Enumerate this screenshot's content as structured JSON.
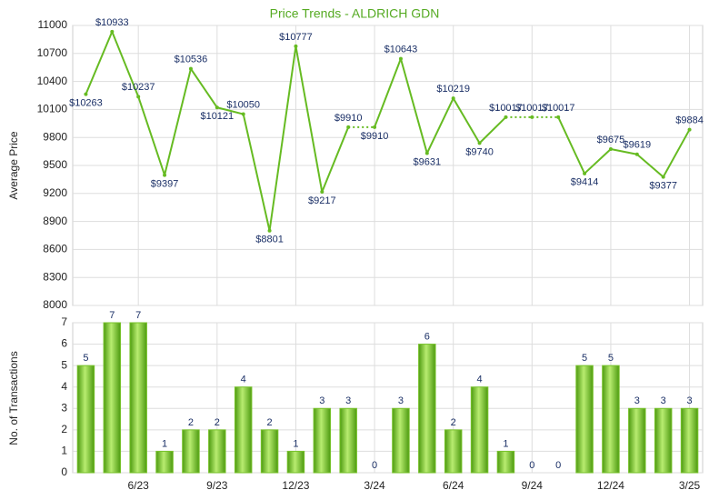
{
  "chart_data": [
    {
      "type": "line",
      "title": "Price Trends - ALDRICH GDN",
      "ylabel": "Average Price",
      "series": [
        {
          "name": "Average Price",
          "color": "#66bb22",
          "values": [
            10263,
            10933,
            10237,
            9397,
            10536,
            10121,
            10050,
            8801,
            10777,
            9217,
            9910,
            9910,
            10643,
            9631,
            10219,
            9740,
            10017,
            10017,
            10017,
            9414,
            9675,
            9619,
            9377,
            9884
          ],
          "value_labels": [
            "$10263",
            "$10933",
            "$10237",
            "$9397",
            "$10536",
            "$10121",
            "$10050",
            "$8801",
            "$10777",
            "$9217",
            "$9910",
            "$9910",
            "$10643",
            "$9631",
            "$10219",
            "$9740",
            "$10017",
            "$10017",
            "$10017",
            "$9414",
            "$9675",
            "$9619",
            "$9377",
            "$9884"
          ]
        }
      ],
      "ylim": [
        8000,
        11000
      ],
      "yticks": [
        8000,
        8300,
        8600,
        8900,
        9200,
        9500,
        9800,
        10100,
        10400,
        10700,
        11000
      ],
      "grid": true
    },
    {
      "type": "bar",
      "ylabel": "No. of Transactions",
      "categories": [
        null,
        null,
        "6/23",
        null,
        null,
        "9/23",
        null,
        null,
        "12/23",
        null,
        null,
        "3/24",
        null,
        null,
        "6/24",
        null,
        null,
        "9/24",
        null,
        null,
        "12/24",
        null,
        null,
        "3/25"
      ],
      "values": [
        5,
        7,
        7,
        1,
        2,
        2,
        4,
        2,
        1,
        3,
        3,
        0,
        3,
        6,
        2,
        4,
        1,
        0,
        0,
        5,
        5,
        3,
        3,
        3
      ],
      "color": "#77c22a",
      "ylim": [
        0,
        7
      ],
      "yticks": [
        0,
        1,
        2,
        3,
        4,
        5,
        6,
        7
      ],
      "grid": true
    }
  ]
}
